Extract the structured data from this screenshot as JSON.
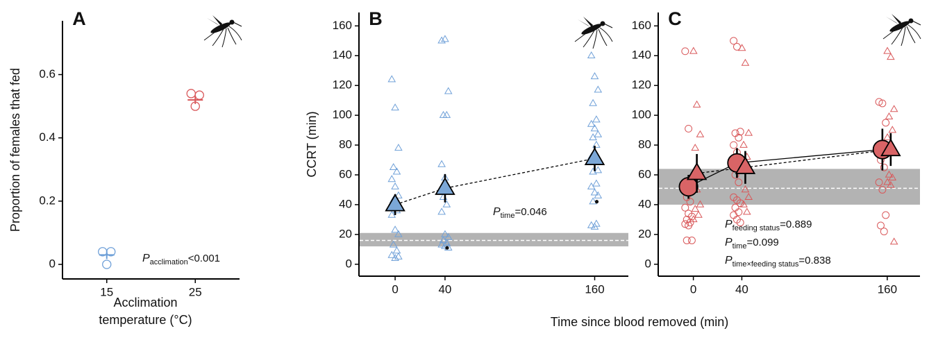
{
  "figure": {
    "xlabel": "Time since blood removed (min)"
  },
  "chart_data": [
    {
      "type": "strip",
      "panel": "A",
      "ylabel": "Proportion of females that fed",
      "xlabel": [
        "Acclimation",
        "temperature (°C)"
      ],
      "categories": [
        "15",
        "25"
      ],
      "ylim": [
        -0.046,
        0.77
      ],
      "yticks": [
        0,
        0.2,
        0.4,
        0.6
      ],
      "series": [
        {
          "marker": "circle",
          "colors": [
            "#6fa0d8",
            "#d9585a"
          ],
          "points": [
            [
              0.04,
              0.04,
              0
            ],
            [
              0.54,
              0.535,
              0.5
            ]
          ],
          "means": [
            0.03,
            0.52
          ],
          "errors": [
            0.013,
            0.013
          ]
        }
      ],
      "annotations": [
        {
          "symbol": "P",
          "sub": "acclimation",
          "text": "<0.001"
        }
      ]
    },
    {
      "type": "strip",
      "panel": "B",
      "ylabel": "CCRT (min)",
      "xlim": [
        -29,
        187
      ],
      "xticks": [
        0,
        40,
        160
      ],
      "ylim": [
        -8,
        169
      ],
      "yticks": [
        0,
        20,
        40,
        60,
        80,
        100,
        120,
        140,
        160
      ],
      "band": [
        12,
        21
      ],
      "band_line": 16,
      "band_color": "#b3b3b3",
      "series": [
        {
          "marker": "triangle",
          "color": "#6fa0d8",
          "fill": "#7ba7d7",
          "line_style": "dashed",
          "points": [
            {
              "x": 0,
              "values": [
                124,
                105,
                78,
                65,
                62,
                57,
                52,
                46,
                43,
                36,
                33,
                23,
                20,
                13,
                9,
                6,
                4,
                5
              ]
            },
            {
              "x": 40,
              "values": [
                150,
                151,
                116,
                100,
                100,
                67,
                58,
                50,
                45,
                40,
                35,
                20,
                18,
                16,
                14,
                13,
                12,
                11
              ]
            },
            {
              "x": 160,
              "values": [
                140,
                126,
                117,
                108,
                97,
                94,
                91,
                87,
                85,
                80,
                72,
                70,
                63,
                62,
                54,
                52,
                48,
                46,
                42,
                27,
                26,
                25
              ]
            }
          ],
          "mean_x": [
            0,
            40,
            160
          ],
          "means": [
            40,
            51,
            71
          ],
          "errors": [
            7,
            9.5,
            8.5
          ]
        }
      ],
      "highlight": {
        "x": [
          40,
          160
        ],
        "values": [
          11,
          42
        ],
        "color": "#111111"
      },
      "annotations": [
        {
          "symbol": "P",
          "sub": "time",
          "text": "=0.046"
        }
      ]
    },
    {
      "type": "strip",
      "panel": "C",
      "xlim": [
        -29,
        187
      ],
      "xticks": [
        0,
        40,
        160
      ],
      "ylim": [
        -8,
        169
      ],
      "yticks": [
        0,
        20,
        40,
        60,
        80,
        100,
        120,
        140,
        160
      ],
      "band": [
        40,
        64
      ],
      "band_line": 51,
      "band_color": "#b3b3b3",
      "series": [
        {
          "marker": "circle",
          "color": "#d9585a",
          "fill": "#d96466",
          "line_style": "solid",
          "points": [
            {
              "x": 0,
              "values": [
                143,
                91,
                50,
                45,
                42,
                38,
                34,
                32,
                30,
                28,
                27,
                26,
                16,
                16
              ]
            },
            {
              "x": 40,
              "values": [
                150,
                146,
                89,
                88,
                85,
                80,
                75,
                70,
                60,
                55,
                45,
                43,
                41,
                38,
                35,
                33,
                30,
                28
              ]
            },
            {
              "x": 160,
              "values": [
                109,
                108,
                95,
                70,
                65,
                55,
                50,
                33,
                26,
                22
              ]
            }
          ],
          "mean_x": [
            0,
            40,
            160
          ],
          "means": [
            52,
            68,
            77
          ],
          "errors": [
            8,
            10,
            14
          ]
        },
        {
          "marker": "triangle",
          "color": "#d9585a",
          "fill": "#d96466",
          "line_style": "dashed",
          "points": [
            {
              "x": 0,
              "values": [
                143,
                107,
                87,
                78,
                63,
                58,
                50,
                40,
                37,
                33,
                30
              ]
            },
            {
              "x": 40,
              "values": [
                145,
                135,
                88,
                80,
                72,
                65,
                50,
                45,
                40,
                35
              ]
            },
            {
              "x": 160,
              "values": [
                143,
                139,
                104,
                99,
                90,
                85,
                80,
                75,
                60,
                58,
                55,
                53,
                15
              ]
            }
          ],
          "mean_x": [
            0,
            40,
            160
          ],
          "means": [
            61,
            65,
            77
          ],
          "errors": [
            13,
            11,
            11
          ]
        }
      ],
      "annotations": [
        {
          "symbol": "P",
          "sub": "feeding status",
          "text": "=0.889"
        },
        {
          "symbol": "P",
          "sub": "time",
          "text": "=0.099"
        },
        {
          "symbol": "P",
          "sub": "time×feeding status",
          "text": "=0.838"
        }
      ]
    }
  ]
}
